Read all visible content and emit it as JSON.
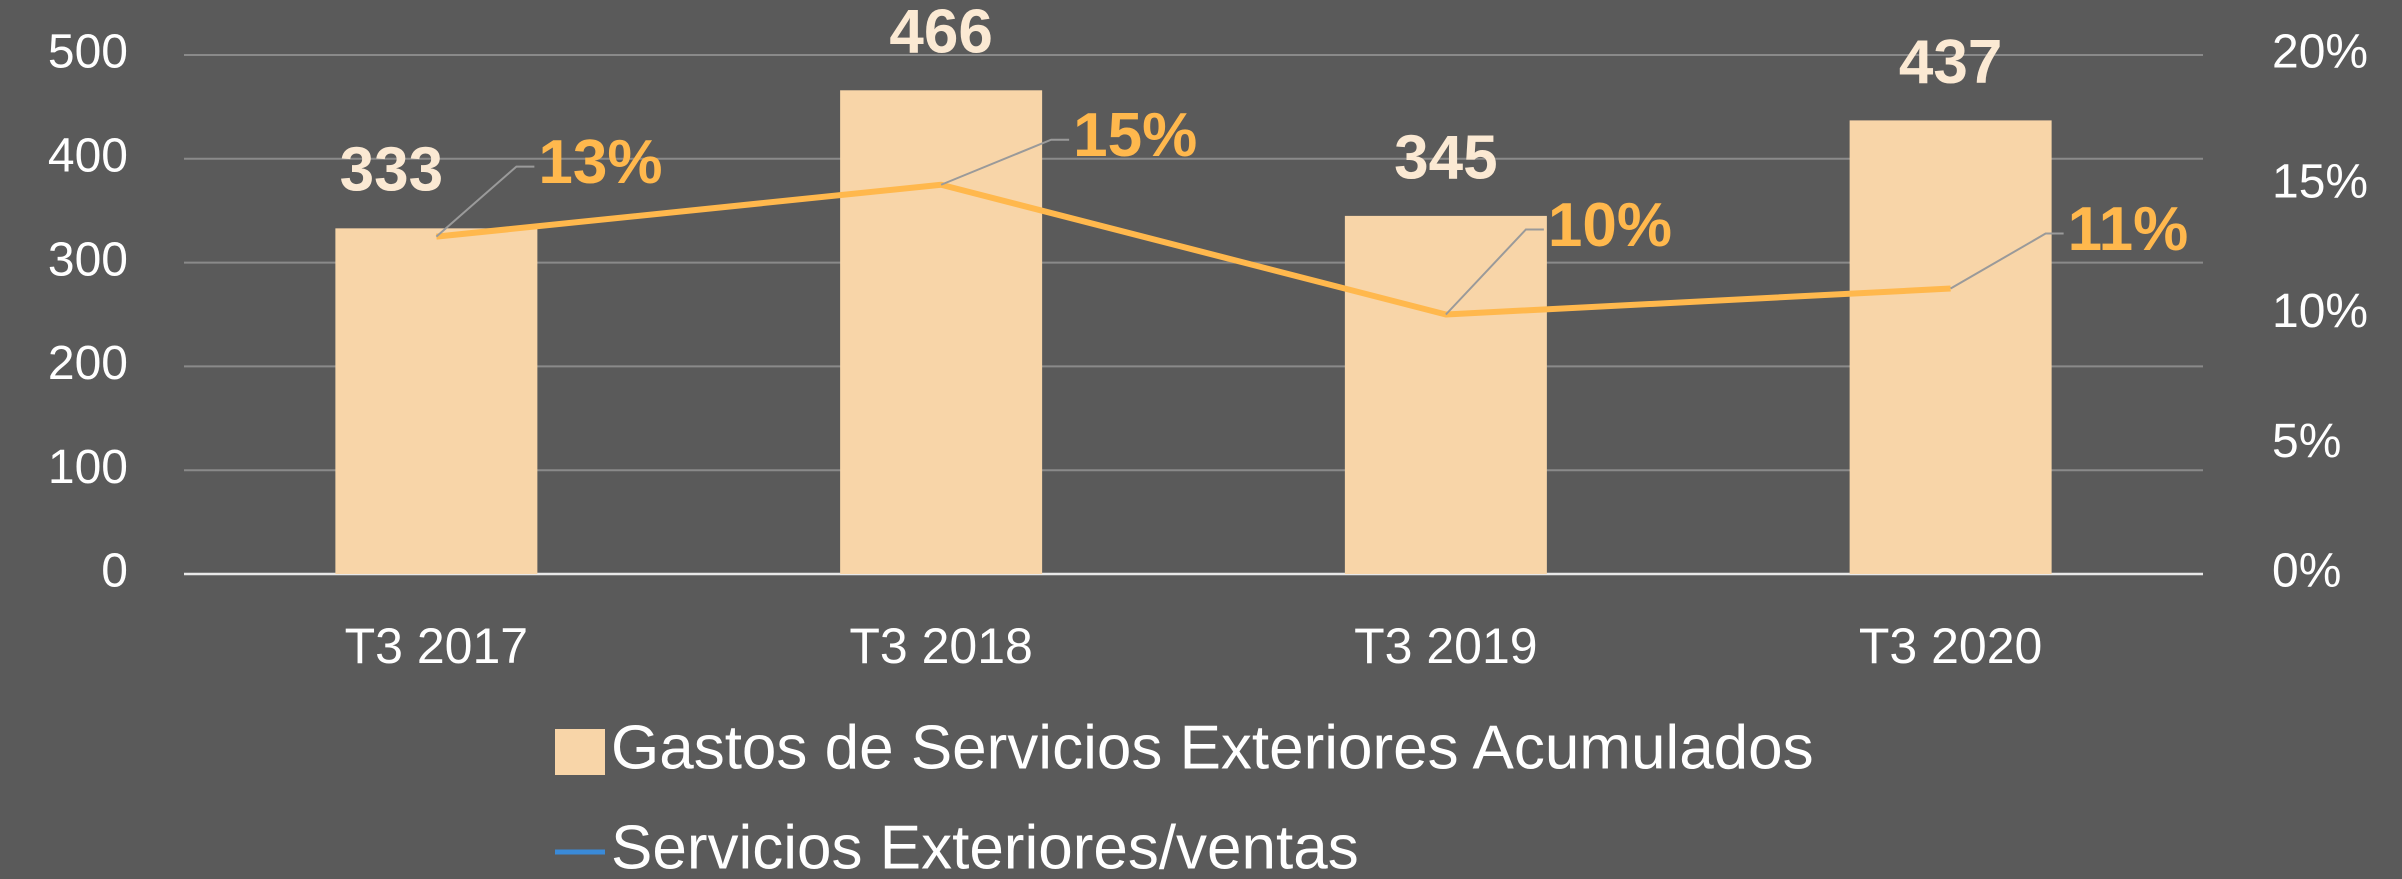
{
  "chart_data": {
    "type": "bar_line",
    "categories": [
      "T3 2017",
      "T3 2018",
      "T3 2019",
      "T3 2020"
    ],
    "series": [
      {
        "name": "Gastos de Servicios Exteriores Acumulados",
        "type": "bar",
        "color": "#f8d5a8",
        "values": [
          333,
          466,
          345,
          437
        ]
      },
      {
        "name": "Servicios Exteriores/ventas",
        "type": "line",
        "axis": "y2",
        "color": "#ffb84d",
        "legend_color": "#3a8ad8",
        "values": [
          13,
          15,
          10,
          11
        ],
        "value_labels": [
          "13%",
          "15%",
          "10%",
          "11%"
        ]
      }
    ],
    "ylim": [
      0,
      500
    ],
    "yticks": [
      0,
      100,
      200,
      300,
      400,
      500
    ],
    "y2lim": [
      0,
      20
    ],
    "y2ticks": [
      {
        "value": 0,
        "label": "0%"
      },
      {
        "value": 5,
        "label": "5%"
      },
      {
        "value": 10,
        "label": "10%"
      },
      {
        "value": 15,
        "label": "15%"
      },
      {
        "value": 20,
        "label": "20%"
      }
    ],
    "grid": true,
    "legend": "bottom"
  }
}
